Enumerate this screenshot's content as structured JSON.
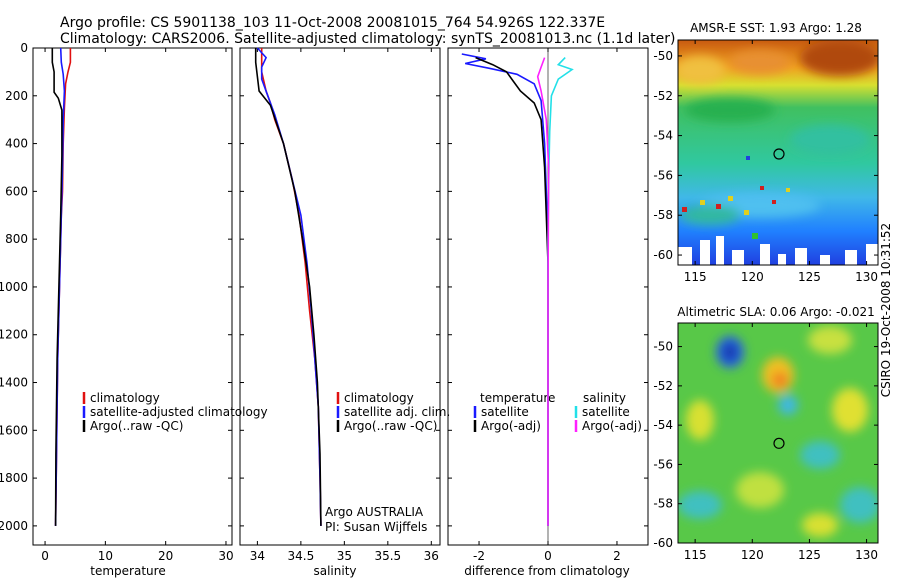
{
  "header": {
    "title_line1": "Argo profile: CS 5901138_103 11-Oct-2008 20081015_764 54.926S 122.337E",
    "title_line2": "Climatology: CARS2006. Satellite-adjusted climatology: synTS_20081013.nc (1.1d later)"
  },
  "side_label": "CSIRO 19-Oct-2008 10:31:52",
  "colors": {
    "red": "#e01010",
    "blue": "#1a1aff",
    "black": "#000000",
    "cyan": "#22e0e8",
    "magenta": "#ff20ff"
  },
  "chart_data": [
    {
      "type": "line",
      "title": "",
      "xlabel": "temperature",
      "ylabel": "",
      "xlim": [
        -2,
        31
      ],
      "ylim": [
        0,
        2080
      ],
      "xticks": [
        "0",
        "10",
        "20",
        "30"
      ],
      "xtick_values": [
        0,
        10,
        20,
        30
      ],
      "yticks": [
        "0",
        "200",
        "400",
        "600",
        "800",
        "1000",
        "1200",
        "1400",
        "1600",
        "1800",
        "2000"
      ],
      "ytick_values": [
        0,
        200,
        400,
        600,
        800,
        1000,
        1200,
        1400,
        1600,
        1800,
        2000
      ],
      "legend": [
        "climatology",
        "satellite-adjusted climatology",
        "Argo(..raw -QC)"
      ],
      "legend_colors": [
        "red",
        "blue",
        "black"
      ],
      "series": [
        {
          "name": "climatology",
          "color": "red",
          "x": [
            4.2,
            4.2,
            3.8,
            3.4,
            3.2,
            3.0,
            2.9,
            2.7,
            2.5,
            2.3,
            2.1,
            2.0,
            1.9,
            1.8,
            1.75
          ],
          "y": [
            0,
            60,
            100,
            150,
            250,
            400,
            600,
            700,
            900,
            1100,
            1300,
            1500,
            1700,
            1900,
            2000
          ]
        },
        {
          "name": "satellite-adjusted climatology",
          "color": "blue",
          "x": [
            2.6,
            2.7,
            3.0,
            3.2,
            3.0,
            2.9,
            2.7,
            2.5,
            2.3,
            2.1,
            2.0,
            1.9,
            1.8,
            1.75
          ],
          "y": [
            0,
            60,
            110,
            180,
            300,
            500,
            700,
            900,
            1100,
            1300,
            1500,
            1700,
            1900,
            2000
          ]
        },
        {
          "name": "Argo(..raw -QC)",
          "color": "black",
          "x": [
            1.2,
            1.2,
            1.5,
            1.5,
            2.2,
            2.8,
            2.8,
            2.6,
            2.4,
            2.2,
            2.0,
            1.9,
            1.8,
            1.75
          ],
          "y": [
            0,
            60,
            100,
            185,
            210,
            260,
            450,
            700,
            900,
            1100,
            1300,
            1500,
            1700,
            2000
          ]
        }
      ]
    },
    {
      "type": "line",
      "title": "",
      "xlabel": "salinity",
      "xlim": [
        33.8,
        36.1
      ],
      "ylim": [
        0,
        2080
      ],
      "xticks": [
        "34",
        "34.5",
        "35",
        "35.5",
        "36"
      ],
      "xtick_values": [
        34,
        34.5,
        35,
        35.5,
        36
      ],
      "legend": [
        "climatology",
        "satellite adj. clim.",
        "Argo(..raw -QC)"
      ],
      "legend_colors": [
        "red",
        "blue",
        "black"
      ],
      "annotations": [
        "Argo AUSTRALIA",
        "PI: Susan Wijffels"
      ],
      "series": [
        {
          "name": "climatology",
          "color": "red",
          "x": [
            34.05,
            34.05,
            34.1,
            34.15,
            34.2,
            34.3,
            34.4,
            34.48,
            34.55,
            34.6,
            34.66,
            34.7,
            34.72,
            34.73
          ],
          "y": [
            0,
            100,
            180,
            230,
            300,
            400,
            550,
            700,
            900,
            1100,
            1300,
            1500,
            1800,
            2000
          ]
        },
        {
          "name": "satellite adj. clim.",
          "color": "blue",
          "x": [
            34.0,
            34.1,
            34.05,
            34.05,
            34.12,
            34.2,
            34.3,
            34.4,
            34.5,
            34.57,
            34.62,
            34.66,
            34.7,
            34.72,
            34.73
          ],
          "y": [
            0,
            40,
            80,
            130,
            200,
            280,
            400,
            550,
            700,
            900,
            1100,
            1300,
            1500,
            1800,
            2000
          ]
        },
        {
          "name": "Argo(..raw -QC)",
          "color": "black",
          "x": [
            33.98,
            33.98,
            34.0,
            34.02,
            34.15,
            34.3,
            34.43,
            34.52,
            34.6,
            34.65,
            34.69,
            34.72,
            34.73
          ],
          "y": [
            0,
            60,
            120,
            180,
            240,
            400,
            600,
            800,
            1000,
            1200,
            1400,
            1700,
            2000
          ]
        }
      ]
    },
    {
      "type": "line",
      "title": "",
      "xlabel": "difference from climatology",
      "xlim": [
        -2.9,
        2.9
      ],
      "ylim": [
        0,
        2080
      ],
      "xticks": [
        "-2",
        "0",
        "2"
      ],
      "xtick_values": [
        -2,
        0,
        2
      ],
      "legend_headers": [
        "temperature",
        "salinity"
      ],
      "legend": [
        "satellite",
        "Argo(-adj)",
        "satellite",
        "Argo(-adj)"
      ],
      "legend_colors": [
        "blue",
        "black",
        "cyan",
        "magenta"
      ],
      "series": [
        {
          "name": "temperature satellite",
          "color": "blue",
          "x": [
            -2.5,
            -1.8,
            -2.4,
            -1.7,
            -0.9,
            -0.4,
            -0.2,
            -0.1,
            0.0,
            0.0,
            0.0
          ],
          "y": [
            25,
            45,
            65,
            85,
            110,
            150,
            220,
            400,
            800,
            1400,
            2000
          ]
        },
        {
          "name": "temperature Argo(-adj)",
          "color": "black",
          "x": [
            -2.1,
            -1.6,
            -1.2,
            -1.0,
            -0.8,
            -0.4,
            -0.2,
            -0.1,
            0.0,
            0.0,
            0.0
          ],
          "y": [
            40,
            70,
            100,
            140,
            180,
            230,
            300,
            500,
            900,
            1500,
            2000
          ]
        },
        {
          "name": "salinity satellite",
          "color": "cyan",
          "x": [
            0.5,
            0.3,
            0.7,
            0.3,
            0.1,
            0.05,
            0.02,
            0.0,
            0.0,
            0.0
          ],
          "y": [
            40,
            70,
            90,
            130,
            200,
            350,
            550,
            800,
            1400,
            2000
          ]
        },
        {
          "name": "salinity Argo(-adj)",
          "color": "magenta",
          "x": [
            -0.1,
            -0.2,
            -0.3,
            -0.2,
            -0.05,
            0.02,
            0.0,
            0.0
          ],
          "y": [
            40,
            80,
            120,
            180,
            300,
            500,
            1000,
            2000
          ]
        }
      ]
    },
    {
      "type": "heatmap",
      "title": "AMSR-E SST: 1.93 Argo: 1.28",
      "xlim": [
        113.5,
        131
      ],
      "ylim": [
        -60.5,
        -49.2
      ],
      "xticks": [
        "115",
        "120",
        "125",
        "130"
      ],
      "xtick_values": [
        115,
        120,
        125,
        130
      ],
      "yticks": [
        "-50",
        "-52",
        "-54",
        "-56",
        "-58",
        "-60"
      ],
      "ytick_values": [
        -50,
        -52,
        -54,
        -56,
        -58,
        -60
      ],
      "marker": {
        "lon": 122.337,
        "lat": -54.926
      }
    },
    {
      "type": "heatmap",
      "title": "Altimetric SLA: 0.06 Argo: -0.021",
      "xlim": [
        113.5,
        131
      ],
      "ylim": [
        -60,
        -48.8
      ],
      "xticks": [
        "115",
        "120",
        "125",
        "130"
      ],
      "xtick_values": [
        115,
        120,
        125,
        130
      ],
      "yticks": [
        "-50",
        "-52",
        "-54",
        "-56",
        "-58",
        "-60"
      ],
      "ytick_values": [
        -50,
        -52,
        -54,
        -56,
        -58,
        -60
      ],
      "marker": {
        "lon": 122.337,
        "lat": -54.926
      }
    }
  ]
}
